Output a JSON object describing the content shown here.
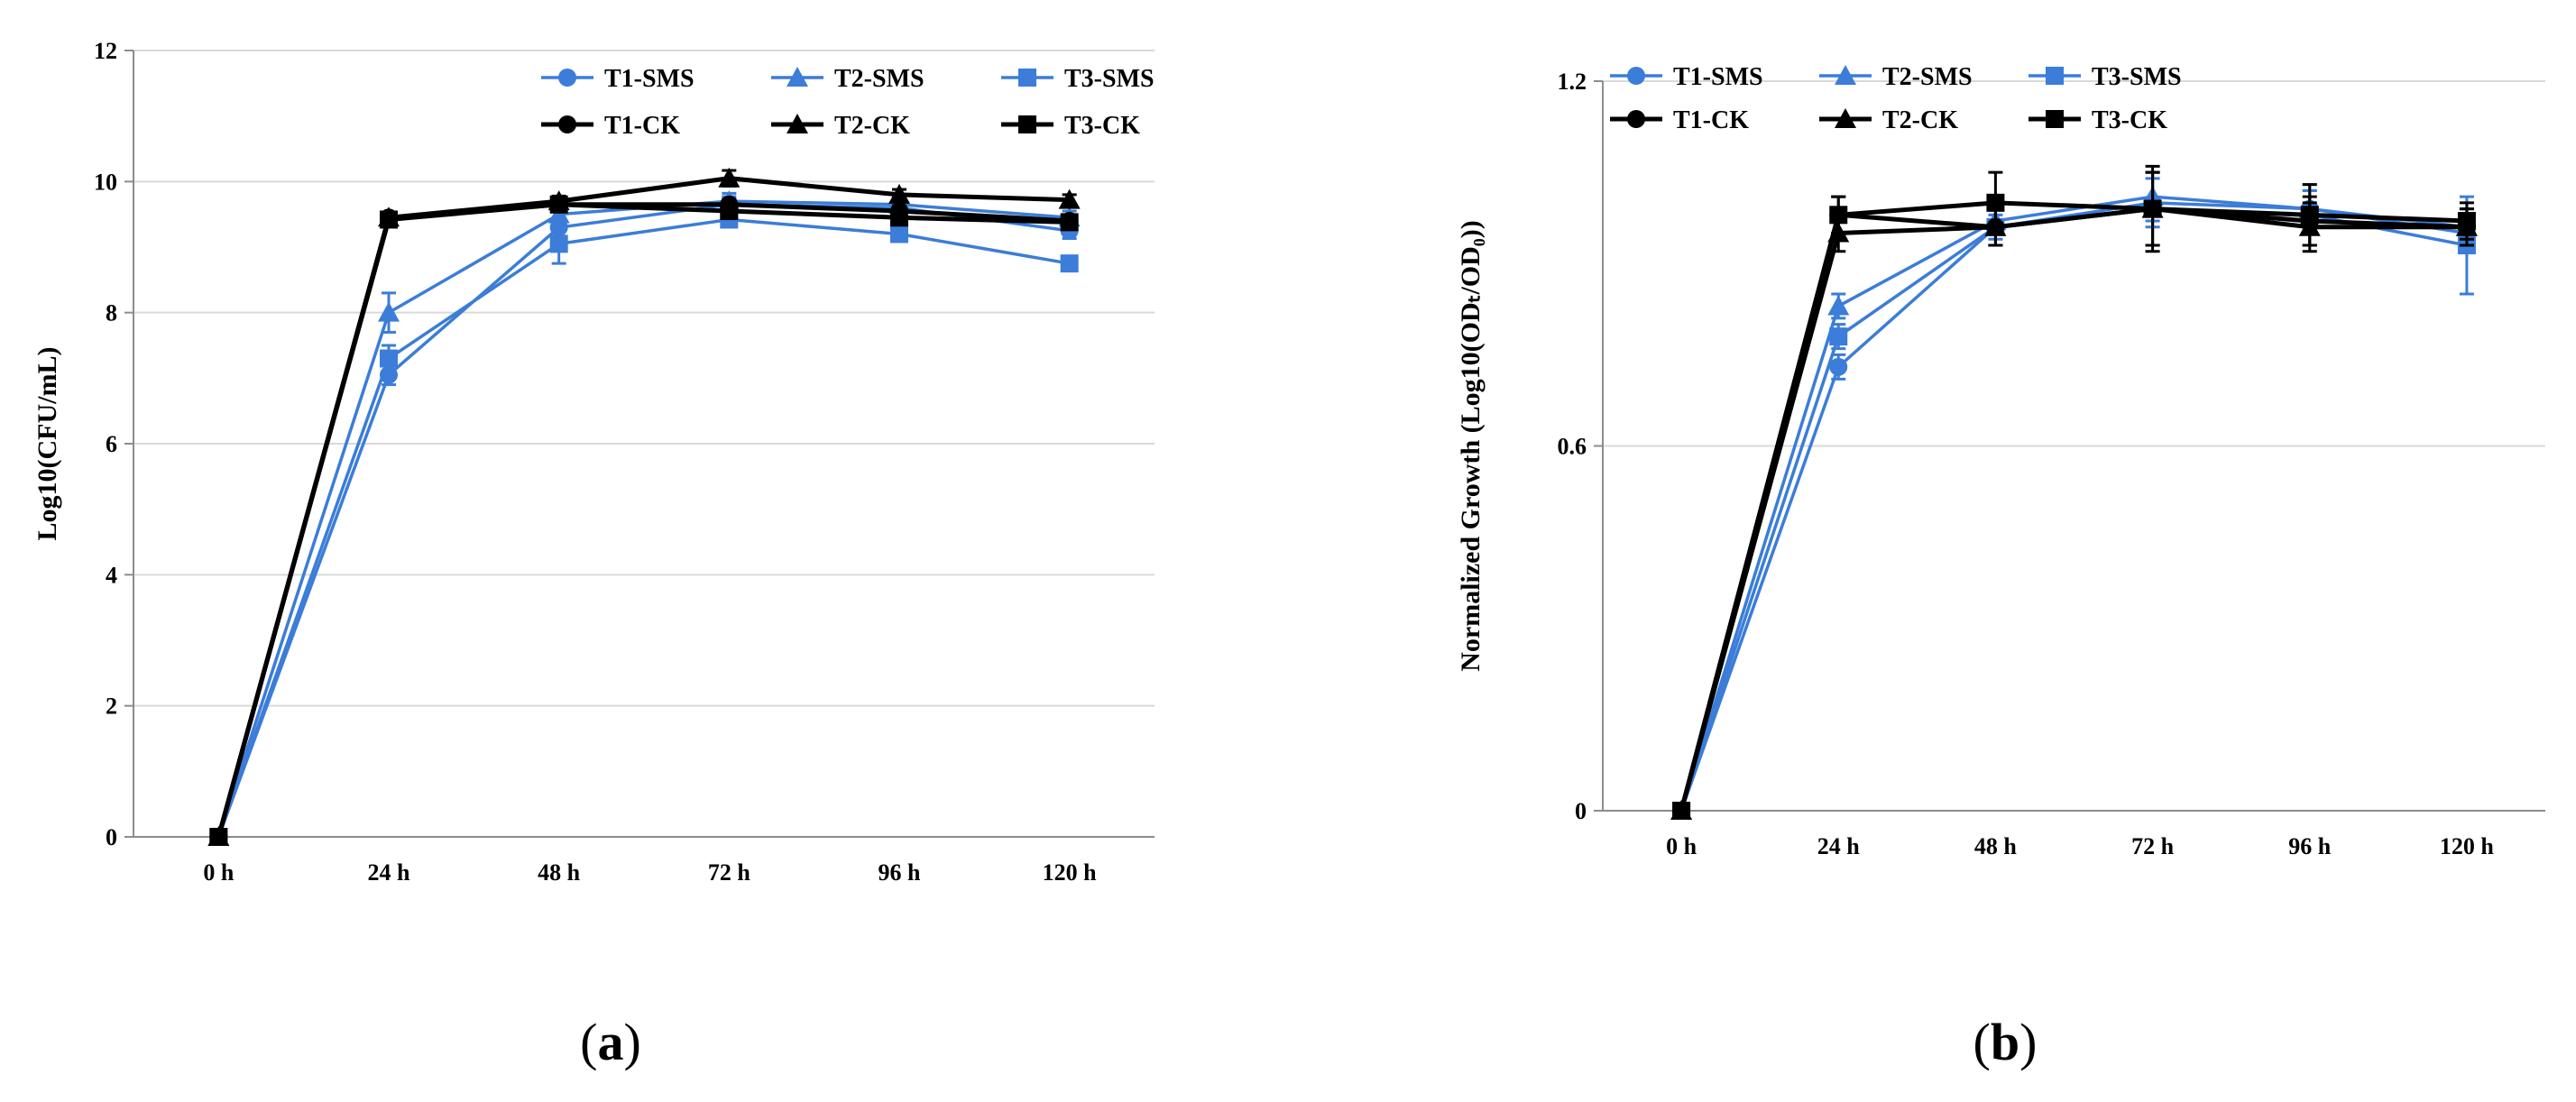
{
  "colors": {
    "sms": "#3b7dd8",
    "ck": "#000000",
    "grid": "#d9d9d9",
    "axis": "#8c8c8c"
  },
  "chart_data": [
    {
      "id": "a",
      "type": "line",
      "panel_label": "a",
      "ylabel": "Log10(CFU/mL)",
      "categories": [
        "0 h",
        "24 h",
        "48 h",
        "72 h",
        "96 h",
        "120 h"
      ],
      "ylim": [
        0,
        12
      ],
      "yticks": [
        0,
        2,
        4,
        6,
        8,
        10,
        12
      ],
      "ytick_labels": [
        "0",
        "2",
        "4",
        "6",
        "8",
        "10",
        "12"
      ],
      "grid": true,
      "legend_position": "top-right",
      "series": [
        {
          "name": "T1-SMS",
          "group": "sms",
          "marker": "circle",
          "values": [
            0,
            7.05,
            9.3,
            9.65,
            9.6,
            9.25
          ],
          "errors": [
            0,
            0.15,
            0.25,
            0.12,
            0.1,
            0.12
          ]
        },
        {
          "name": "T2-SMS",
          "group": "sms",
          "marker": "triangle",
          "values": [
            0,
            8.0,
            9.5,
            9.7,
            9.65,
            9.45
          ],
          "errors": [
            0,
            0.3,
            0.2,
            0.12,
            0.1,
            0.1
          ]
        },
        {
          "name": "T3-SMS",
          "group": "sms",
          "marker": "square",
          "values": [
            0,
            7.3,
            9.05,
            9.42,
            9.2,
            8.75
          ],
          "errors": [
            0,
            0.2,
            0.3,
            0.1,
            0.1,
            0.08
          ]
        },
        {
          "name": "T1-CK",
          "group": "ck",
          "marker": "circle",
          "values": [
            0,
            9.45,
            9.65,
            9.65,
            9.55,
            9.4
          ],
          "errors": [
            0,
            0.08,
            0.08,
            0.08,
            0.08,
            0.08
          ]
        },
        {
          "name": "T2-CK",
          "group": "ck",
          "marker": "triangle",
          "values": [
            0,
            9.45,
            9.7,
            10.05,
            9.8,
            9.72
          ],
          "errors": [
            0,
            0.08,
            0.08,
            0.12,
            0.08,
            0.08
          ]
        },
        {
          "name": "T3-CK",
          "group": "ck",
          "marker": "square",
          "values": [
            0,
            9.42,
            9.65,
            9.55,
            9.45,
            9.38
          ],
          "errors": [
            0,
            0.08,
            0.08,
            0.08,
            0.08,
            0.08
          ]
        }
      ]
    },
    {
      "id": "b",
      "type": "line",
      "panel_label": "b",
      "ylabel": "Normalized Growth (Log10(ODₜ/OD₀))",
      "categories": [
        "0 h",
        "24 h",
        "48 h",
        "72 h",
        "96 h",
        "120 h"
      ],
      "ylim": [
        0,
        1.2
      ],
      "yticks": [
        0,
        0.6,
        1.2
      ],
      "ytick_labels": [
        "0",
        "0.6",
        "1.2"
      ],
      "grid": true,
      "legend_position": "top-left",
      "series": [
        {
          "name": "T1-SMS",
          "group": "sms",
          "marker": "circle",
          "values": [
            0,
            0.73,
            0.96,
            1.0,
            0.99,
            0.95
          ],
          "errors": [
            0,
            0.02,
            0.02,
            0.04,
            0.03,
            0.03
          ]
        },
        {
          "name": "T2-SMS",
          "group": "sms",
          "marker": "triangle",
          "values": [
            0,
            0.83,
            0.97,
            1.01,
            0.99,
            0.96
          ],
          "errors": [
            0,
            0.02,
            0.02,
            0.04,
            0.03,
            0.03
          ]
        },
        {
          "name": "T3-SMS",
          "group": "sms",
          "marker": "square",
          "values": [
            0,
            0.78,
            0.96,
            0.99,
            0.98,
            0.93
          ],
          "errors": [
            0,
            0.02,
            0.03,
            0.06,
            0.05,
            0.08
          ]
        },
        {
          "name": "T1-CK",
          "group": "ck",
          "marker": "circle",
          "values": [
            0,
            0.98,
            0.96,
            0.99,
            0.97,
            0.96
          ],
          "errors": [
            0,
            0.03,
            0.03,
            0.06,
            0.04,
            0.03
          ]
        },
        {
          "name": "T2-CK",
          "group": "ck",
          "marker": "triangle",
          "values": [
            0,
            0.95,
            0.96,
            0.99,
            0.96,
            0.96
          ],
          "errors": [
            0,
            0.03,
            0.03,
            0.06,
            0.04,
            0.03
          ]
        },
        {
          "name": "T3-CK",
          "group": "ck",
          "marker": "square",
          "values": [
            0,
            0.98,
            1.0,
            0.99,
            0.98,
            0.97
          ],
          "errors": [
            0,
            0.03,
            0.05,
            0.07,
            0.05,
            0.03
          ]
        }
      ]
    }
  ]
}
